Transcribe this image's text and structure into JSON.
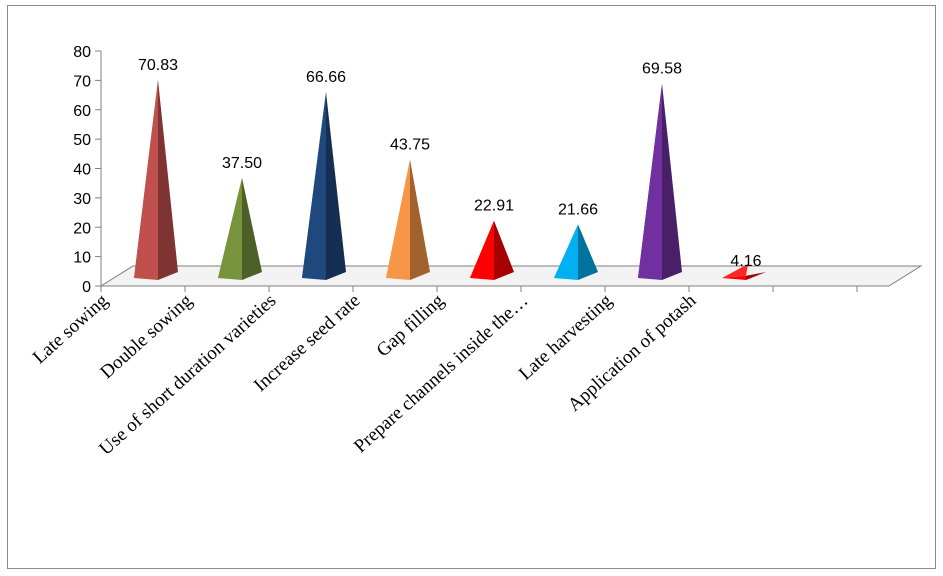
{
  "chart_data": {
    "type": "bar",
    "categories": [
      "Late sowing",
      "Double sowing",
      "Use of short duration varieties",
      "Increase seed rate",
      "Gap filling",
      "Prepare channels inside the…",
      "Late harvesting",
      "Application of potash"
    ],
    "values": [
      70.83,
      37.5,
      66.66,
      43.75,
      22.91,
      21.66,
      69.58,
      4.16
    ],
    "value_labels": [
      "70.83",
      "37.50",
      "66.66",
      "43.75",
      "22.91",
      "21.66",
      "69.58",
      "4.16"
    ],
    "colors": [
      "#c0504d",
      "#77933c",
      "#1f497d",
      "#f79646",
      "#ff0000",
      "#00b0f0",
      "#7030a0",
      "#ff0000"
    ],
    "yticks": [
      "0",
      "10",
      "20",
      "30",
      "40",
      "50",
      "60",
      "70",
      "80"
    ],
    "ylim": [
      0,
      80
    ],
    "grid": false,
    "legend": "none",
    "shape": "pyramid-3d"
  }
}
